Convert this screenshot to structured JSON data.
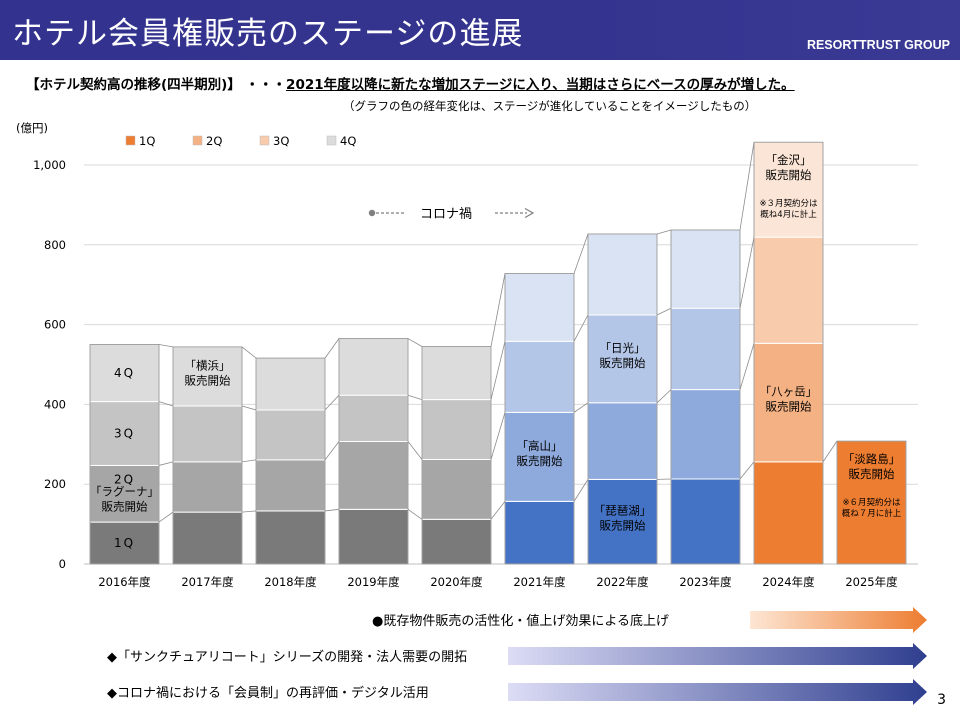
{
  "header": {
    "title": "ホテル会員権販売のステージの進展",
    "company": "RESORTTRUST GROUP"
  },
  "headline": {
    "prefix": "【ホテル契約高の推移(四半期別)】 ・・・",
    "emphasis": "2021年度以降に新たな増加ステージに入り、当期はさらにベースの厚みが増した。"
  },
  "subnote": "（グラフの色の経年変化は、ステージが進化していることをイメージしたもの）",
  "page_number": "3",
  "colors": {
    "stage1": [
      "#7a7a7a",
      "#a6a6a6",
      "#c4c4c4",
      "#dcdcdc"
    ],
    "stage2": [
      "#4472c4",
      "#8ea9db",
      "#b4c6e7",
      "#dae3f3"
    ],
    "stage3": [
      "#ed7d31",
      "#f4b183",
      "#f8cbad",
      "#fbe5d6"
    ],
    "legend": [
      "#ed7d31",
      "#f4b183",
      "#f8cbad",
      "#dcdcdc"
    ],
    "arrow_orange": "#ed7d31",
    "arrow_blue": "#2f3f8f"
  },
  "chart_data": {
    "type": "bar",
    "stacked": true,
    "ylabel": "(億円)",
    "ylim": [
      0,
      1050
    ],
    "yticks": [
      0,
      200,
      400,
      600,
      800,
      1000
    ],
    "ytick_labels": [
      "0",
      "200",
      "400",
      "600",
      "800",
      "1,000"
    ],
    "grid": true,
    "categories": [
      "2016年度",
      "2017年度",
      "2018年度",
      "2019年度",
      "2020年度",
      "2021年度",
      "2022年度",
      "2023年度",
      "2024年度",
      "2025年度"
    ],
    "stage": [
      1,
      1,
      1,
      1,
      1,
      2,
      2,
      2,
      3,
      3
    ],
    "legend_position": "top-left",
    "series": [
      {
        "name": "1Q",
        "values": [
          105,
          130,
          133,
          137,
          112,
          157,
          212,
          213,
          256,
          308
        ]
      },
      {
        "name": "2Q",
        "values": [
          142,
          126,
          128,
          170,
          150,
          223,
          192,
          224,
          297,
          null
        ]
      },
      {
        "name": "3Q",
        "values": [
          160,
          140,
          125,
          116,
          150,
          178,
          220,
          204,
          266,
          null
        ]
      },
      {
        "name": "4Q",
        "values": [
          143,
          148,
          130,
          142,
          133,
          170,
          203,
          196,
          238,
          null
        ]
      }
    ],
    "segment_labels": [
      {
        "category": 0,
        "series": 0,
        "text": "1Q"
      },
      {
        "category": 0,
        "series": 1,
        "text": "2Q"
      },
      {
        "category": 0,
        "series": 2,
        "text": "3Q"
      },
      {
        "category": 0,
        "series": 3,
        "text": "4Q"
      }
    ],
    "annotations": [
      {
        "category": 0,
        "series": 1,
        "lines": [
          "「ラグーナ」",
          "販売開始"
        ]
      },
      {
        "category": 1,
        "series": 3,
        "lines": [
          "「横浜」",
          "販売開始"
        ]
      },
      {
        "category": 5,
        "series": 1,
        "lines": [
          "「高山」",
          "販売開始"
        ]
      },
      {
        "category": 6,
        "series": 0,
        "lines": [
          "「琵琶湖」",
          "販売開始"
        ]
      },
      {
        "category": 6,
        "series": 2,
        "lines": [
          "「日光」",
          "販売開始"
        ]
      },
      {
        "category": 8,
        "series": 1,
        "lines": [
          "「八ヶ岳」",
          "販売開始"
        ]
      },
      {
        "category": 8,
        "series": 3,
        "lines": [
          "「金沢」",
          "販売開始"
        ],
        "note": [
          "※３月契約分は",
          "概ね4月に計上"
        ]
      },
      {
        "category": 9,
        "series": 0,
        "lines": [
          "「淡路島」",
          "販売開始"
        ],
        "note": [
          "※６月契約分は",
          "概ね７月に計上"
        ]
      }
    ],
    "covid_label": "コロナ禍"
  },
  "arrows": [
    {
      "label": "●既存物件販売の活性化・値上げ効果による底上げ",
      "style": "orange"
    },
    {
      "label": "◆「サンクチュアリコート」シリーズの開発・法人需要の開拓",
      "style": "blue"
    },
    {
      "label": "◆コロナ禍における「会員制」の再評価・デジタル活用",
      "style": "blue"
    }
  ]
}
